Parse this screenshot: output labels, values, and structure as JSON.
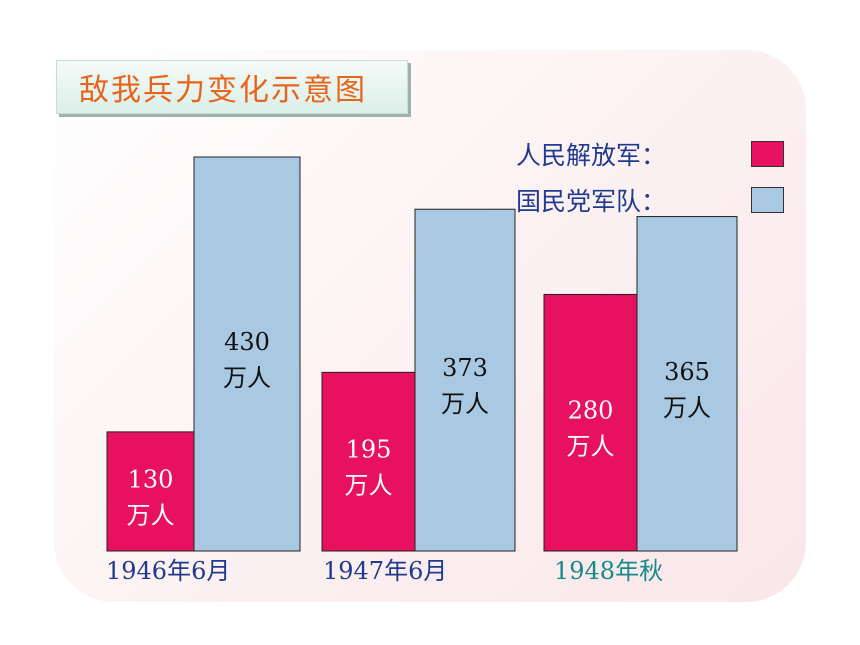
{
  "title": "敌我兵力变化示意图",
  "legend": [
    {
      "label": "人民解放军：",
      "color": "#e8115f"
    },
    {
      "label": "国民党军队：",
      "color": "#a9c9e2"
    }
  ],
  "unit": "万人",
  "colors": {
    "pla": "#e8115f",
    "kmt": "#a9c9e2",
    "category_default": "#1f3a8f",
    "category_highlight": "#16898a"
  },
  "chart_data": {
    "type": "bar",
    "title": "敌我兵力变化示意图",
    "categories": [
      "1946年6月",
      "1947年6月",
      "1948年秋"
    ],
    "category_colors": [
      "#1f3a8f",
      "#1f3a8f",
      "#16898a"
    ],
    "series": [
      {
        "name": "人民解放军",
        "values": [
          130,
          195,
          280
        ],
        "color": "#e8115f"
      },
      {
        "name": "国民党军队",
        "values": [
          430,
          373,
          365
        ],
        "color": "#a9c9e2"
      }
    ],
    "ylim": [
      0,
      430
    ],
    "grid": false,
    "legend_position": "top-right",
    "xlabel": "",
    "ylabel": ""
  }
}
